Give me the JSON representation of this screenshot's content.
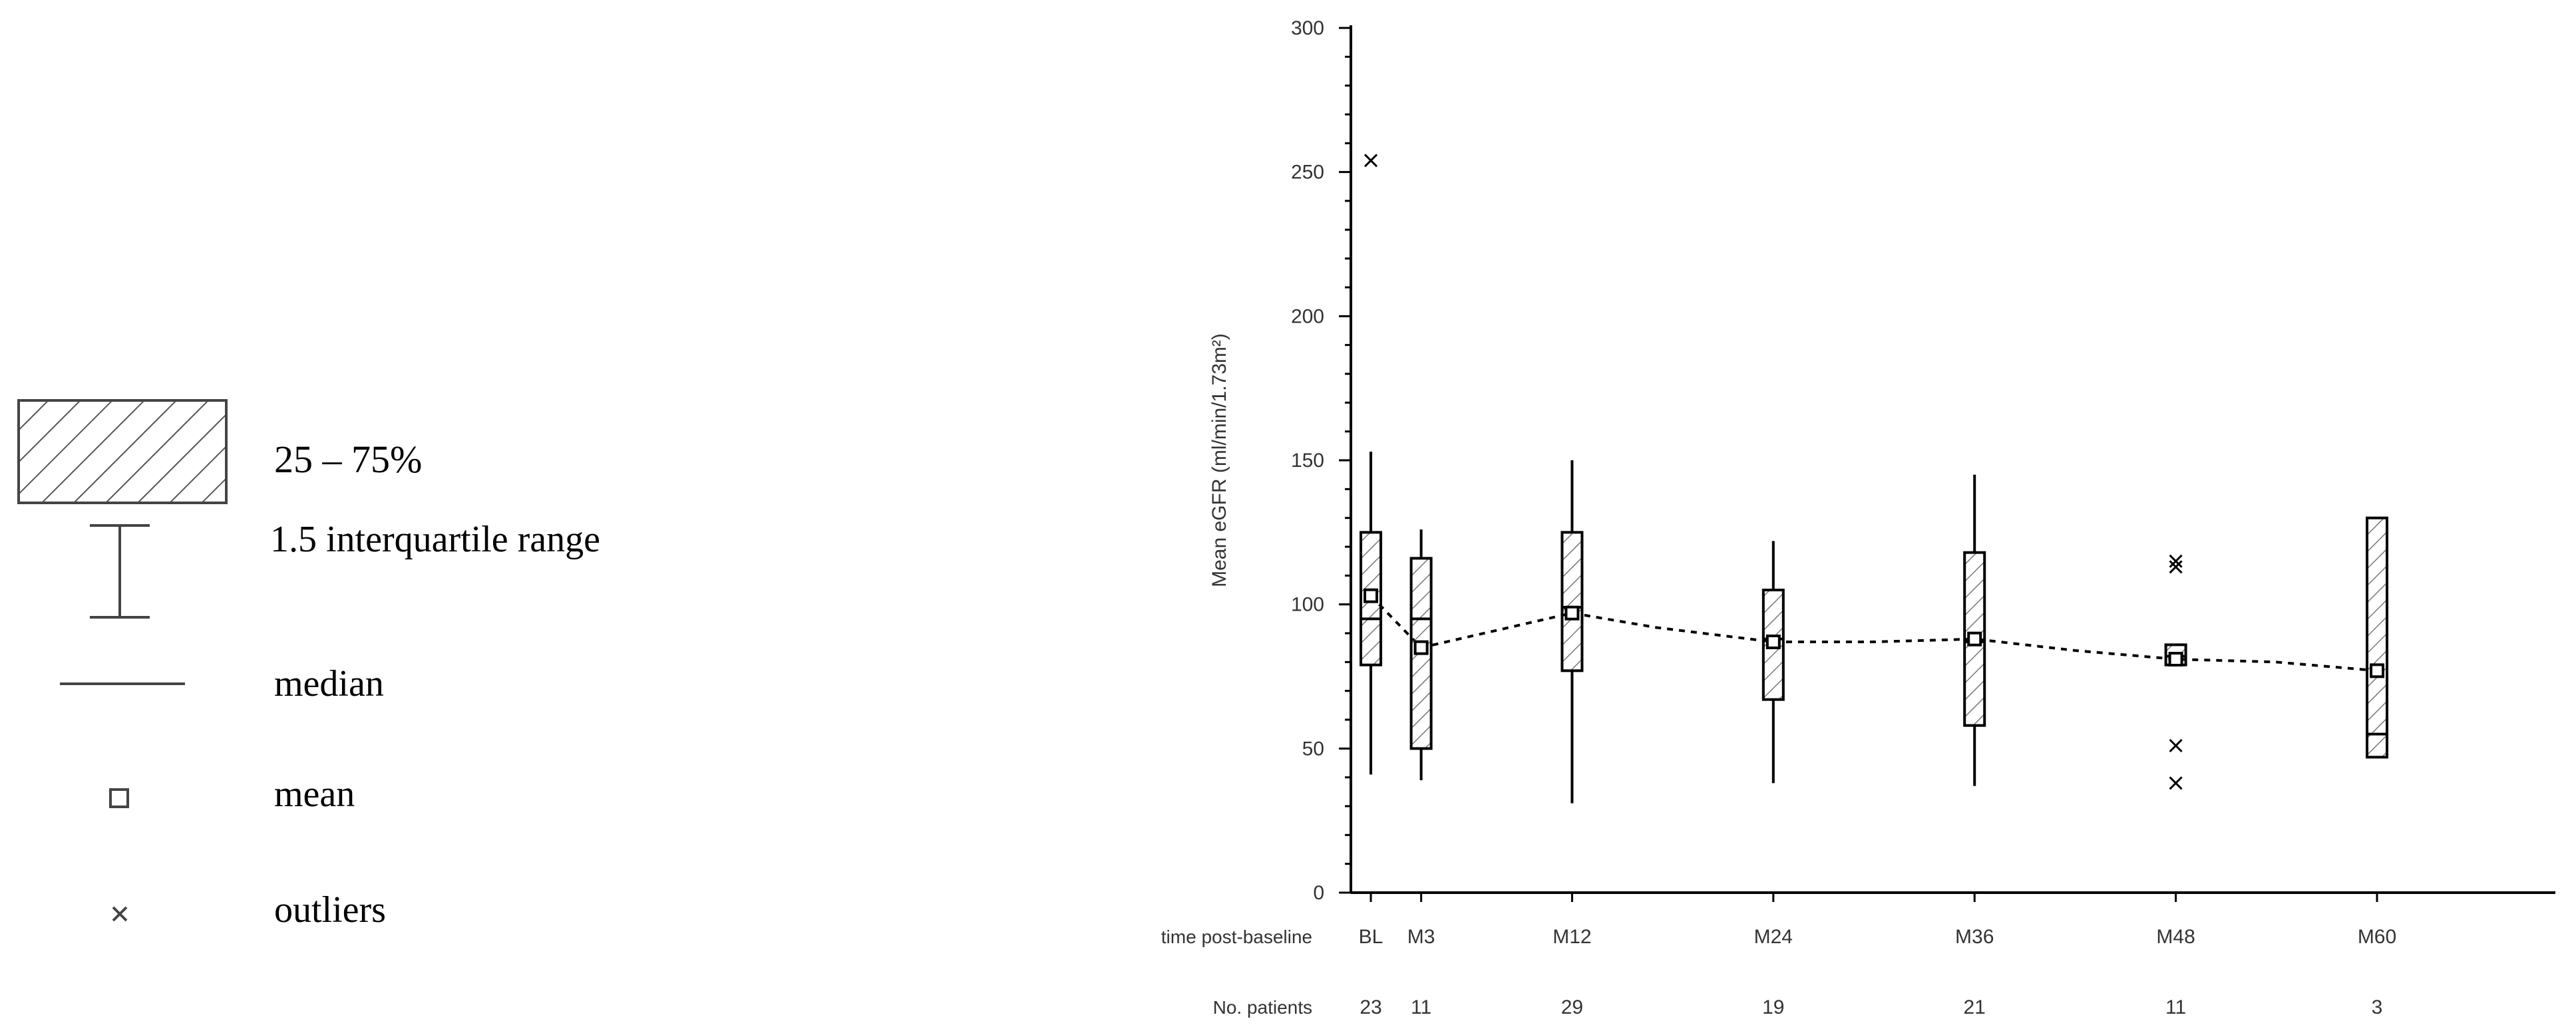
{
  "legend": {
    "items": [
      {
        "icon": "hatched-box-icon",
        "label": "25 – 75%"
      },
      {
        "icon": "whisker-icon",
        "label": "1.5 interquartile range"
      },
      {
        "icon": "median-line-icon",
        "label": "median"
      },
      {
        "icon": "open-square-icon",
        "label": "mean"
      },
      {
        "icon": "x-marker-icon",
        "label": "outliers"
      }
    ]
  },
  "chart_data": {
    "type": "box",
    "ylabel": "Mean eGFR (ml/min/1.73m²)",
    "ylim": [
      0,
      300
    ],
    "yticks": [
      "0",
      "50",
      "100",
      "150",
      "200",
      "250",
      "300"
    ],
    "x_axis_title": "time post-baseline",
    "patients_row_title": "No. patients",
    "categories": [
      "BL",
      "M3",
      "M12",
      "M24",
      "M36",
      "M48",
      "M60"
    ],
    "months": [
      0,
      3,
      12,
      24,
      36,
      48,
      60
    ],
    "n_patients": [
      "23",
      "11",
      "29",
      "19",
      "21",
      "11",
      "3"
    ],
    "q1": [
      79,
      50,
      77,
      67,
      58,
      79,
      47
    ],
    "q3": [
      125,
      116,
      125,
      105,
      118,
      86,
      130
    ],
    "median": [
      95,
      95,
      99,
      88,
      87,
      82,
      55
    ],
    "mean": [
      103,
      85,
      97,
      87,
      88,
      81,
      77
    ],
    "whisker_low": [
      41,
      39,
      31,
      38,
      37,
      null,
      null
    ],
    "whisker_high": [
      153,
      126,
      150,
      122,
      145,
      null,
      null
    ],
    "outliers": [
      [
        254
      ],
      [],
      [],
      [],
      [],
      [
        115,
        113,
        51,
        38
      ],
      []
    ],
    "mean_trend": [
      [
        0,
        103
      ],
      [
        3,
        85
      ],
      [
        12,
        97
      ],
      [
        17,
        92
      ],
      [
        24,
        87
      ],
      [
        30,
        87
      ],
      [
        36,
        88
      ],
      [
        42,
        84
      ],
      [
        48,
        81
      ],
      [
        54,
        80
      ],
      [
        60,
        77
      ]
    ],
    "colors": {
      "ink": "#000000",
      "legend_ink": "#444444",
      "axis_text": "#333333"
    },
    "grid": false
  }
}
